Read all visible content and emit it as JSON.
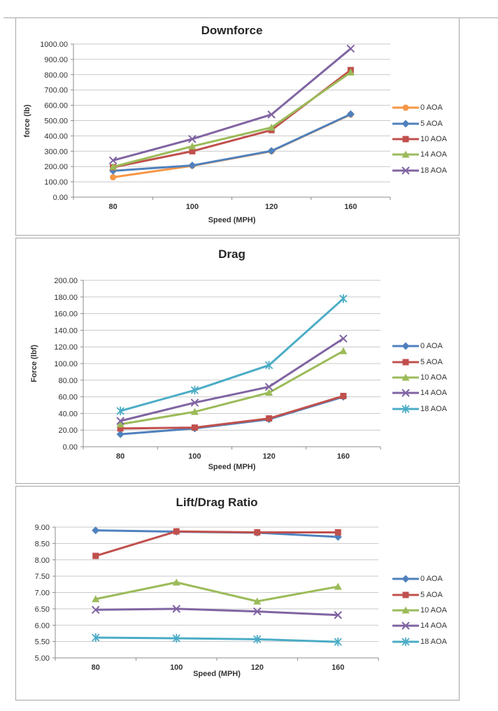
{
  "chart_data": [
    {
      "type": "line",
      "title": "Downforce",
      "xlabel": "Speed (MPH)",
      "ylabel": "force (lb)",
      "categories": [
        "80",
        "100",
        "120",
        "160"
      ],
      "ylim": [
        0,
        1000
      ],
      "y_tick_labels": [
        "1000.00",
        "900.00",
        "800.00",
        "700.00",
        "600.00",
        "500.00",
        "400.00",
        "300.00",
        "200.00",
        "100.00",
        "0.00"
      ],
      "grid": true,
      "legend_position": "right",
      "series": [
        {
          "name": "0 AOA",
          "color": "#F79646",
          "marker": "circle",
          "values": [
            130,
            205,
            300,
            540
          ]
        },
        {
          "name": "5 AOA",
          "color": "#4F81BD",
          "marker": "diamond",
          "values": [
            172,
            207,
            302,
            542
          ]
        },
        {
          "name": "10 AOA",
          "color": "#C0504D",
          "marker": "square",
          "values": [
            195,
            300,
            438,
            830
          ]
        },
        {
          "name": "14 AOA",
          "color": "#9BBB59",
          "marker": "triangle",
          "values": [
            198,
            332,
            455,
            815
          ]
        },
        {
          "name": "18 AOA",
          "color": "#8064A2",
          "marker": "x",
          "values": [
            240,
            380,
            540,
            970
          ]
        }
      ]
    },
    {
      "type": "line",
      "title": "Drag",
      "xlabel": "Speed (MPH)",
      "ylabel": "Force (lbf)",
      "categories": [
        "80",
        "100",
        "120",
        "160"
      ],
      "ylim": [
        0,
        200
      ],
      "y_tick_labels": [
        "200.00",
        "180.00",
        "160.00",
        "140.00",
        "120.00",
        "100.00",
        "80.00",
        "60.00",
        "40.00",
        "20.00",
        "0.00"
      ],
      "grid": true,
      "legend_position": "right",
      "series": [
        {
          "name": "0 AOA",
          "color": "#4F81BD",
          "marker": "diamond",
          "values": [
            15,
            22,
            33,
            60
          ]
        },
        {
          "name": "5 AOA",
          "color": "#C0504D",
          "marker": "square",
          "values": [
            22,
            23,
            34,
            61
          ]
        },
        {
          "name": "10 AOA",
          "color": "#9BBB59",
          "marker": "triangle",
          "values": [
            27,
            42,
            65,
            115
          ]
        },
        {
          "name": "14 AOA",
          "color": "#8064A2",
          "marker": "x",
          "values": [
            31,
            53,
            72,
            130
          ]
        },
        {
          "name": "18 AOA",
          "color": "#4BACC6",
          "marker": "asterisk",
          "values": [
            43,
            68,
            98,
            178
          ]
        }
      ]
    },
    {
      "type": "line",
      "title": "Lift/Drag Ratio",
      "xlabel": "Speed (MPH)",
      "ylabel": "",
      "categories": [
        "80",
        "100",
        "120",
        "160"
      ],
      "ylim": [
        5,
        9
      ],
      "y_tick_labels": [
        "9.00",
        "8.50",
        "8.00",
        "7.50",
        "7.00",
        "6.50",
        "6.00",
        "5.50",
        "5.00"
      ],
      "grid": true,
      "legend_position": "right",
      "series": [
        {
          "name": "0 AOA",
          "color": "#4F81BD",
          "marker": "diamond",
          "values": [
            8.9,
            8.86,
            8.83,
            8.7
          ]
        },
        {
          "name": "5 AOA",
          "color": "#C0504D",
          "marker": "square",
          "values": [
            8.12,
            8.87,
            8.84,
            8.84
          ]
        },
        {
          "name": "10 AOA",
          "color": "#9BBB59",
          "marker": "triangle",
          "values": [
            6.8,
            7.31,
            6.73,
            7.18
          ]
        },
        {
          "name": "14 AOA",
          "color": "#8064A2",
          "marker": "x",
          "values": [
            6.47,
            6.5,
            6.42,
            6.31
          ]
        },
        {
          "name": "18 AOA",
          "color": "#4BACC6",
          "marker": "asterisk",
          "values": [
            5.62,
            5.6,
            5.57,
            5.49
          ]
        }
      ]
    }
  ]
}
